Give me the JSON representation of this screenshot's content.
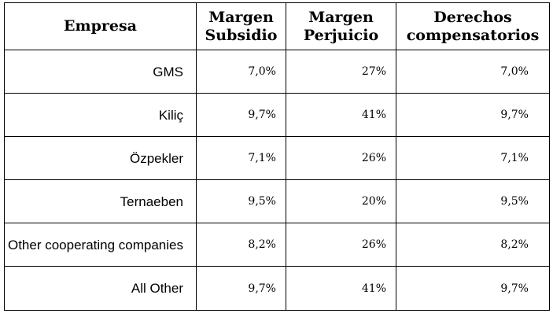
{
  "table": {
    "headers": [
      "Empresa",
      "Margen Subsidio",
      "Margen Perjuicio",
      "Derechos compensatorios"
    ],
    "rows": [
      {
        "empresa": "GMS",
        "margen_subsidio": "7,0%",
        "margen_perjuicio": "27%",
        "derechos_compensatorios": "7,0%"
      },
      {
        "empresa": "Kiliç",
        "margen_subsidio": "9,7%",
        "margen_perjuicio": "41%",
        "derechos_compensatorios": "9,7%"
      },
      {
        "empresa": "Özpekler",
        "margen_subsidio": "7,1%",
        "margen_perjuicio": "26%",
        "derechos_compensatorios": "7,1%"
      },
      {
        "empresa": "Ternaeben",
        "margen_subsidio": "9,5%",
        "margen_perjuicio": "20%",
        "derechos_compensatorios": "9,5%"
      },
      {
        "empresa": "Other cooperating companies",
        "margen_subsidio": "8,2%",
        "margen_perjuicio": "26%",
        "derechos_compensatorios": "8,2%"
      },
      {
        "empresa": "All Other",
        "margen_subsidio": "9,7%",
        "margen_perjuicio": "41%",
        "derechos_compensatorios": "9,7%"
      }
    ]
  }
}
